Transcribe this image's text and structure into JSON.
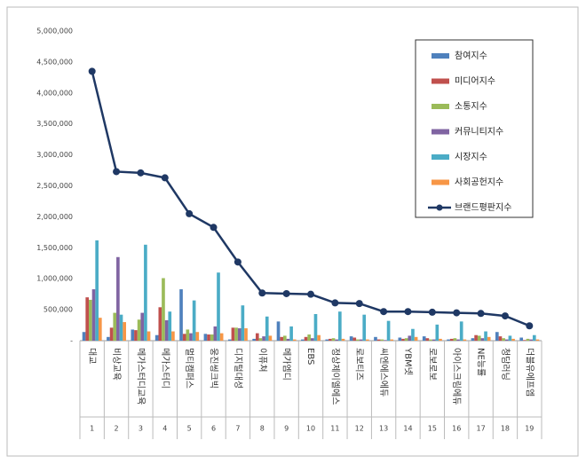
{
  "chart_data": {
    "type": "bar",
    "categories": [
      "대교",
      "비상교육",
      "메가스터디교육",
      "메가스터디",
      "멀티캠퍼스",
      "웅진씽크빅",
      "디지털대성",
      "이퓨쳐",
      "메가엠디",
      "EBS",
      "정상제이엘에스",
      "로보티즈",
      "씨엔에스에듀",
      "YBM넷",
      "로보로보",
      "아이스크림에듀",
      "NE능률",
      "청담러닝",
      "더블유에프엠"
    ],
    "ranks": [
      1,
      2,
      3,
      4,
      5,
      6,
      7,
      8,
      9,
      10,
      11,
      12,
      13,
      14,
      15,
      16,
      17,
      18,
      19
    ],
    "series": [
      {
        "name": "참여지수",
        "color": "#4f81bd",
        "values": [
          140000,
          60000,
          180000,
          90000,
          830000,
          110000,
          20000,
          30000,
          310000,
          20000,
          20000,
          70000,
          60000,
          50000,
          70000,
          20000,
          40000,
          140000,
          50000
        ]
      },
      {
        "name": "미디어지수",
        "color": "#c0504d",
        "values": [
          700000,
          210000,
          170000,
          540000,
          110000,
          100000,
          210000,
          120000,
          60000,
          60000,
          30000,
          50000,
          20000,
          30000,
          40000,
          30000,
          90000,
          70000,
          10000
        ]
      },
      {
        "name": "소통지수",
        "color": "#9bbb59",
        "values": [
          660000,
          450000,
          340000,
          1010000,
          180000,
          100000,
          210000,
          40000,
          80000,
          100000,
          40000,
          20000,
          20000,
          40000,
          20000,
          40000,
          80000,
          40000,
          30000
        ]
      },
      {
        "name": "커뮤니티지수",
        "color": "#8064a2",
        "values": [
          830000,
          1350000,
          450000,
          330000,
          120000,
          230000,
          200000,
          70000,
          30000,
          40000,
          20000,
          20000,
          10000,
          80000,
          20000,
          20000,
          40000,
          20000,
          20000
        ]
      },
      {
        "name": "시장지수",
        "color": "#4bacc6",
        "values": [
          1620000,
          420000,
          1550000,
          470000,
          650000,
          1100000,
          570000,
          390000,
          230000,
          430000,
          470000,
          420000,
          320000,
          190000,
          260000,
          310000,
          150000,
          80000,
          90000
        ]
      },
      {
        "name": "사회공헌지수",
        "color": "#f79646",
        "values": [
          370000,
          300000,
          150000,
          150000,
          140000,
          120000,
          200000,
          80000,
          20000,
          90000,
          30000,
          20000,
          20000,
          60000,
          30000,
          20000,
          60000,
          30000,
          20000
        ]
      },
      {
        "name": "브랜드평판지수",
        "color": "#1f3864",
        "type": "line",
        "values": [
          4350000,
          2730000,
          2710000,
          2630000,
          2050000,
          1830000,
          1270000,
          770000,
          760000,
          750000,
          610000,
          600000,
          470000,
          470000,
          460000,
          450000,
          440000,
          400000,
          240000
        ]
      }
    ],
    "ylim": [
      0,
      5000000
    ],
    "yticks": [
      {
        "value": 0,
        "label": "-"
      },
      {
        "value": 500000,
        "label": "500,000"
      },
      {
        "value": 1000000,
        "label": "1,000,000"
      },
      {
        "value": 1500000,
        "label": "1,500,000"
      },
      {
        "value": 2000000,
        "label": "2,000,000"
      },
      {
        "value": 2500000,
        "label": "2,500,000"
      },
      {
        "value": 3000000,
        "label": "3,000,000"
      },
      {
        "value": 3500000,
        "label": "3,500,000"
      },
      {
        "value": 4000000,
        "label": "4,000,000"
      },
      {
        "value": 4500000,
        "label": "4,500,000"
      },
      {
        "value": 5000000,
        "label": "5,000,000"
      }
    ],
    "grid": false,
    "legend": "top-right"
  }
}
